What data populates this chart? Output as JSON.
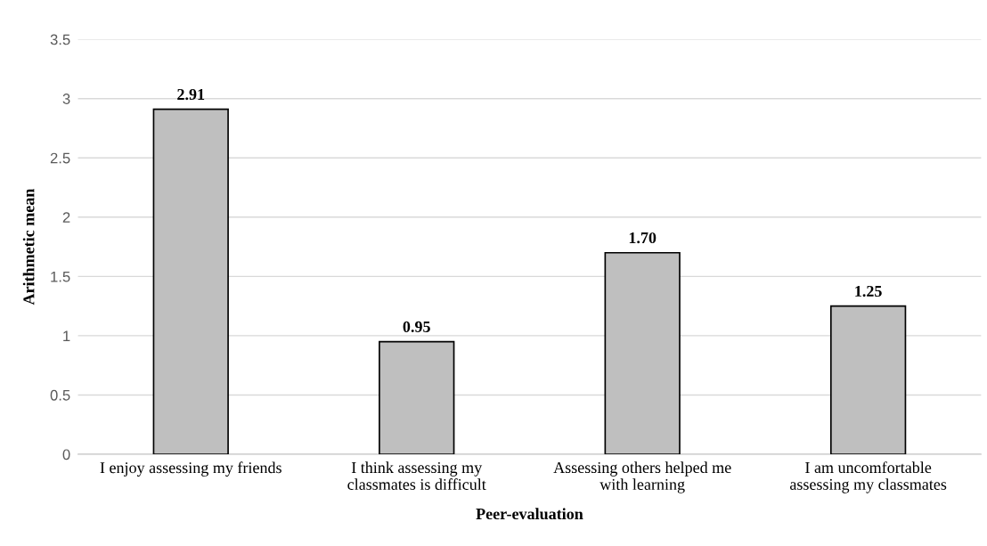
{
  "chart_data": {
    "type": "bar",
    "xlabel": "Peer-evaluation",
    "ylabel": "Arithmetic mean",
    "categories": [
      "I enjoy assessing my friends",
      "I think assessing my\nclassmates is difficult",
      "Assessing others helped me\nwith learning",
      "I am uncomfortable\nassessing my classmates"
    ],
    "values": [
      2.91,
      0.95,
      1.7,
      1.25
    ],
    "value_labels": [
      "2.91",
      "0.95",
      "1.70",
      "1.25"
    ],
    "color": "#bfbfbf",
    "ylim": [
      0,
      3.5
    ],
    "yticks": [
      0,
      0.5,
      1,
      1.5,
      2,
      2.5,
      3,
      3.5
    ],
    "grid": "y"
  }
}
